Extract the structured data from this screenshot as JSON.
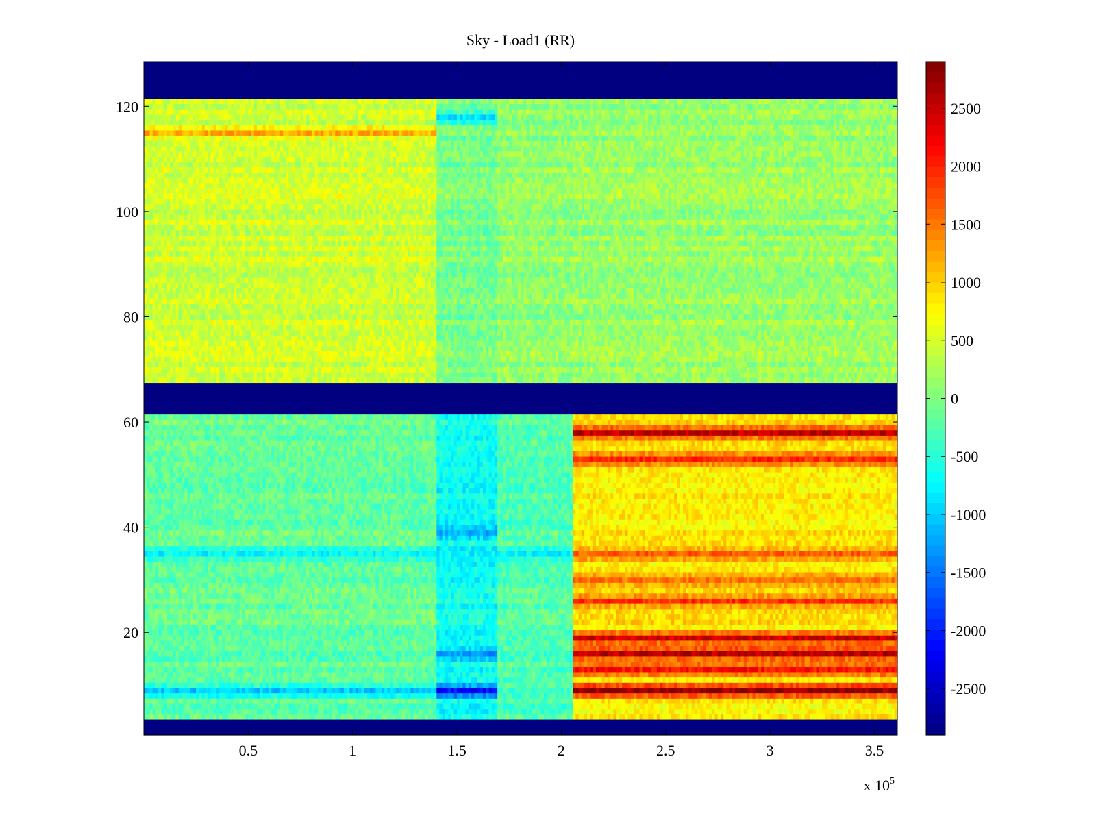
{
  "chart_data": {
    "type": "heatmap",
    "title": "Sky - Load1 (RR)",
    "xlabel": "",
    "ylabel": "",
    "x_exponent_label": {
      "base": "x 10",
      "exponent": "5"
    },
    "xlim": [
      0,
      361000
    ],
    "ylim": [
      0.5,
      128.5
    ],
    "x_ticks": [
      50000,
      100000,
      150000,
      200000,
      250000,
      300000,
      350000
    ],
    "x_tick_labels": [
      "0.5",
      "1",
      "1.5",
      "2",
      "2.5",
      "3",
      "3.5"
    ],
    "y_ticks": [
      20,
      40,
      60,
      80,
      100,
      120
    ],
    "y_tick_labels": [
      "20",
      "40",
      "60",
      "80",
      "100",
      "120"
    ],
    "colormap": "jet",
    "clim": [
      -2900,
      2900
    ],
    "colorbar": {
      "position": "right",
      "ticks": [
        2500,
        2000,
        1500,
        1000,
        500,
        0,
        -500,
        -1000,
        -1500,
        -2000,
        -2500
      ],
      "tick_labels": [
        "2500",
        "2000",
        "1500",
        "1000",
        "500",
        "0",
        "-500",
        "-1000",
        "-1500",
        "-2000",
        "-2500"
      ]
    },
    "masked_value": -2900,
    "masked_row_ranges": [
      [
        1,
        3
      ],
      [
        62,
        67
      ],
      [
        122,
        128
      ]
    ],
    "grid": false,
    "time_segments": [
      {
        "x_start": 0,
        "x_end": 140000,
        "band": "upper",
        "mean_value": 450
      },
      {
        "x_start": 0,
        "x_end": 140000,
        "band": "lower",
        "mean_value": -150
      },
      {
        "x_start": 140000,
        "x_end": 170000,
        "band": "upper",
        "mean_value": -50
      },
      {
        "x_start": 140000,
        "x_end": 170000,
        "band": "lower",
        "mean_value": -650
      },
      {
        "x_start": 170000,
        "x_end": 205000,
        "band": "upper",
        "mean_value": 100
      },
      {
        "x_start": 170000,
        "x_end": 205000,
        "band": "lower",
        "mean_value": -250
      },
      {
        "x_start": 205000,
        "x_end": 361000,
        "band": "upper",
        "mean_value": 150
      },
      {
        "x_start": 205000,
        "x_end": 361000,
        "band": "lower",
        "mean_value": 850
      }
    ],
    "highlighted_rows": [
      {
        "row": 115,
        "x_range": [
          0,
          140000
        ],
        "value": 1100
      },
      {
        "row": 118,
        "x_range": [
          140000,
          170000
        ],
        "value": -900
      },
      {
        "row": 58,
        "x_range": [
          205000,
          361000
        ],
        "value": 2500
      },
      {
        "row": 53,
        "x_range": [
          205000,
          361000
        ],
        "value": 2000
      },
      {
        "row": 35,
        "x_range": [
          205000,
          361000
        ],
        "value": 1700
      },
      {
        "row": 30,
        "x_range": [
          205000,
          361000
        ],
        "value": 1600
      },
      {
        "row": 26,
        "x_range": [
          205000,
          361000
        ],
        "value": 1800
      },
      {
        "row": 19,
        "x_range": [
          205000,
          361000
        ],
        "value": 2500
      },
      {
        "row": 16,
        "x_range": [
          205000,
          361000
        ],
        "value": 2700
      },
      {
        "row": 13,
        "x_range": [
          205000,
          361000
        ],
        "value": 2200
      },
      {
        "row": 9,
        "x_range": [
          205000,
          361000
        ],
        "value": 2900
      },
      {
        "row": 9,
        "x_range": [
          140000,
          170000
        ],
        "value": -2000
      },
      {
        "row": 16,
        "x_range": [
          140000,
          170000
        ],
        "value": -1200
      },
      {
        "row": 39,
        "x_range": [
          140000,
          170000
        ],
        "value": -1300
      },
      {
        "row": 35,
        "x_range": [
          0,
          205000
        ],
        "value": -700
      },
      {
        "row": 9,
        "x_range": [
          0,
          140000
        ],
        "value": -900
      }
    ]
  }
}
